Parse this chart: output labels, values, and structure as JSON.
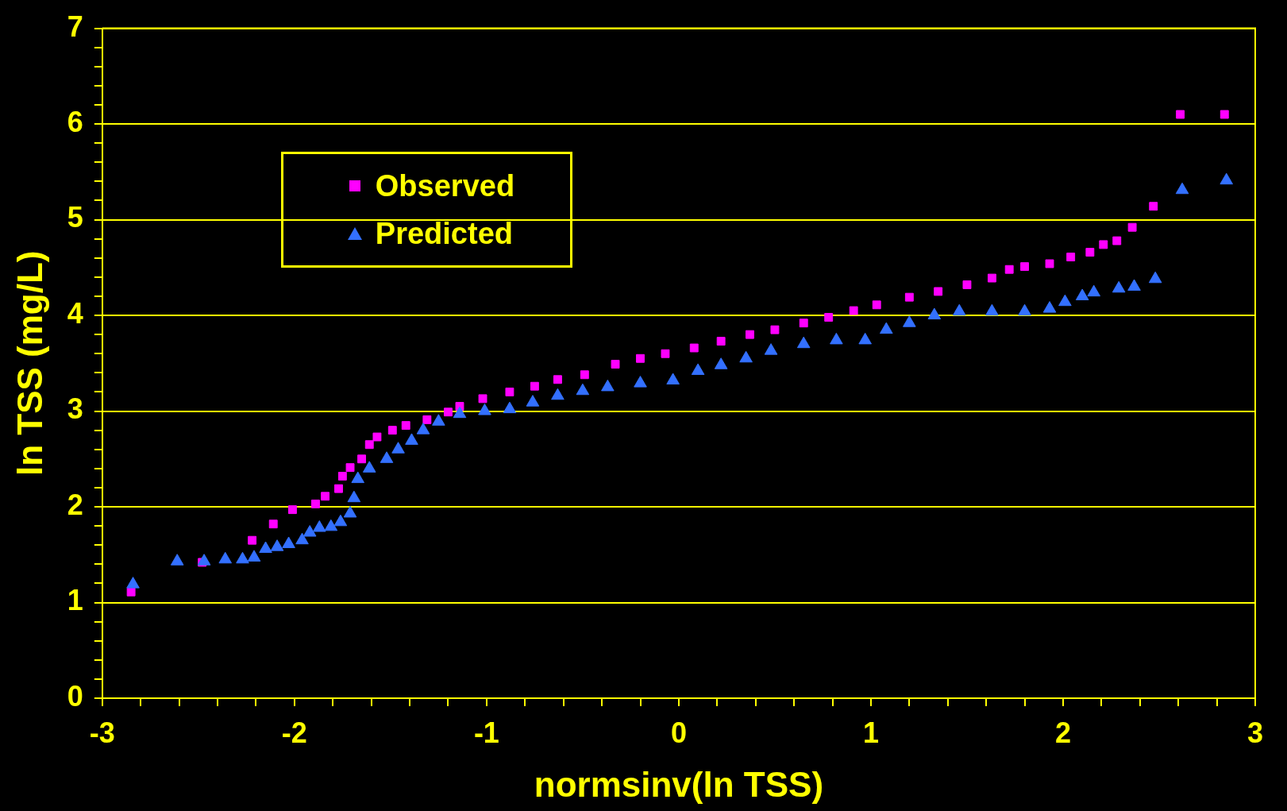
{
  "chart_data": {
    "type": "scatter",
    "xlabel": "normsinv(ln TSS)",
    "ylabel": "ln TSS (mg/L)",
    "xlim": [
      -3,
      3
    ],
    "ylim": [
      0,
      7
    ],
    "xticks": [
      -3,
      {
        "value": -2.8,
        "label": null
      },
      {
        "value": -2.6,
        "label": null
      },
      {
        "value": -2.4,
        "label": null
      },
      {
        "value": -2.2,
        "label": null
      },
      -2,
      {
        "value": -1.8,
        "label": null
      },
      {
        "value": -1.6,
        "label": null
      },
      {
        "value": -1.4,
        "label": null
      },
      {
        "value": -1.2,
        "label": null
      },
      -1,
      {
        "value": -0.8,
        "label": null
      },
      {
        "value": -0.6,
        "label": null
      },
      {
        "value": -0.4,
        "label": null
      },
      {
        "value": -0.2,
        "label": null
      },
      0,
      {
        "value": 0.2,
        "label": null
      },
      {
        "value": 0.4,
        "label": null
      },
      {
        "value": 0.6,
        "label": null
      },
      {
        "value": 0.8,
        "label": null
      },
      1,
      {
        "value": 1.2,
        "label": null
      },
      {
        "value": 1.4,
        "label": null
      },
      {
        "value": 1.6,
        "label": null
      },
      {
        "value": 1.8,
        "label": null
      },
      2,
      {
        "value": 2.2,
        "label": null
      },
      {
        "value": 2.4,
        "label": null
      },
      {
        "value": 2.6,
        "label": null
      },
      {
        "value": 2.8,
        "label": null
      },
      3
    ],
    "yticks": [
      0,
      {
        "value": 0.2,
        "label": null
      },
      {
        "value": 0.4,
        "label": null
      },
      {
        "value": 0.6,
        "label": null
      },
      {
        "value": 0.8,
        "label": null
      },
      1,
      {
        "value": 1.2,
        "label": null
      },
      {
        "value": 1.4,
        "label": null
      },
      {
        "value": 1.6,
        "label": null
      },
      {
        "value": 1.8,
        "label": null
      },
      2,
      {
        "value": 2.2,
        "label": null
      },
      {
        "value": 2.4,
        "label": null
      },
      {
        "value": 2.6,
        "label": null
      },
      {
        "value": 2.8,
        "label": null
      },
      3,
      {
        "value": 3.2,
        "label": null
      },
      {
        "value": 3.4,
        "label": null
      },
      {
        "value": 3.6,
        "label": null
      },
      {
        "value": 3.8,
        "label": null
      },
      4,
      {
        "value": 4.2,
        "label": null
      },
      {
        "value": 4.4,
        "label": null
      },
      {
        "value": 4.6,
        "label": null
      },
      {
        "value": 4.8,
        "label": null
      },
      5,
      {
        "value": 5.2,
        "label": null
      },
      {
        "value": 5.4,
        "label": null
      },
      {
        "value": 5.6,
        "label": null
      },
      {
        "value": 5.8,
        "label": null
      },
      6,
      {
        "value": 6.2,
        "label": null
      },
      {
        "value": 6.4,
        "label": null
      },
      {
        "value": 6.6,
        "label": null
      },
      {
        "value": 6.8,
        "label": null
      },
      7
    ],
    "grid": "y",
    "legend": "top left",
    "series": [
      {
        "name": "Observed",
        "color": "#ff00ff",
        "marker": "square",
        "x": [
          -2.85,
          -2.48,
          -2.22,
          -2.11,
          -2.01,
          -1.89,
          -1.84,
          -1.77,
          -1.75,
          -1.71,
          -1.65,
          -1.61,
          -1.57,
          -1.49,
          -1.42,
          -1.31,
          -1.2,
          -1.14,
          -1.02,
          -0.88,
          -0.75,
          -0.63,
          -0.49,
          -0.33,
          -0.2,
          -0.07,
          0.08,
          0.22,
          0.37,
          0.5,
          0.65,
          0.78,
          0.91,
          1.03,
          1.2,
          1.35,
          1.5,
          1.63,
          1.72,
          1.8,
          1.93,
          2.04,
          2.14,
          2.21,
          2.28,
          2.36,
          2.47,
          2.61,
          2.84
        ],
        "values": [
          1.11,
          1.42,
          1.65,
          1.82,
          1.97,
          2.03,
          2.11,
          2.19,
          2.32,
          2.41,
          2.5,
          2.65,
          2.73,
          2.8,
          2.85,
          2.91,
          2.99,
          3.05,
          3.13,
          3.2,
          3.26,
          3.33,
          3.38,
          3.49,
          3.55,
          3.6,
          3.66,
          3.73,
          3.8,
          3.85,
          3.92,
          3.98,
          4.05,
          4.11,
          4.19,
          4.25,
          4.32,
          4.39,
          4.48,
          4.51,
          4.54,
          4.61,
          4.66,
          4.74,
          4.78,
          4.92,
          5.14,
          6.1,
          6.1
        ]
      },
      {
        "name": "Predicted",
        "color": "#3370ff",
        "marker": "triangle",
        "x": [
          -2.84,
          -2.61,
          -2.47,
          -2.36,
          -2.27,
          -2.21,
          -2.15,
          -2.09,
          -2.03,
          -1.96,
          -1.92,
          -1.87,
          -1.81,
          -1.76,
          -1.71,
          -1.69,
          -1.67,
          -1.61,
          -1.52,
          -1.46,
          -1.39,
          -1.33,
          -1.25,
          -1.14,
          -1.01,
          -0.88,
          -0.76,
          -0.63,
          -0.5,
          -0.37,
          -0.2,
          -0.03,
          0.1,
          0.22,
          0.35,
          0.48,
          0.65,
          0.82,
          0.97,
          1.08,
          1.2,
          1.33,
          1.46,
          1.63,
          1.8,
          1.93,
          2.01,
          2.1,
          2.16,
          2.29,
          2.37,
          2.48,
          2.62,
          2.85
        ],
        "values": [
          1.19,
          1.43,
          1.43,
          1.45,
          1.45,
          1.47,
          1.56,
          1.58,
          1.61,
          1.65,
          1.73,
          1.78,
          1.79,
          1.84,
          1.93,
          2.09,
          2.29,
          2.4,
          2.5,
          2.6,
          2.69,
          2.8,
          2.89,
          2.97,
          3.0,
          3.02,
          3.09,
          3.16,
          3.21,
          3.25,
          3.29,
          3.32,
          3.42,
          3.48,
          3.55,
          3.63,
          3.7,
          3.74,
          3.74,
          3.85,
          3.92,
          4.0,
          4.04,
          4.04,
          4.04,
          4.07,
          4.14,
          4.2,
          4.24,
          4.28,
          4.3,
          4.38,
          5.31,
          5.41
        ]
      }
    ]
  }
}
